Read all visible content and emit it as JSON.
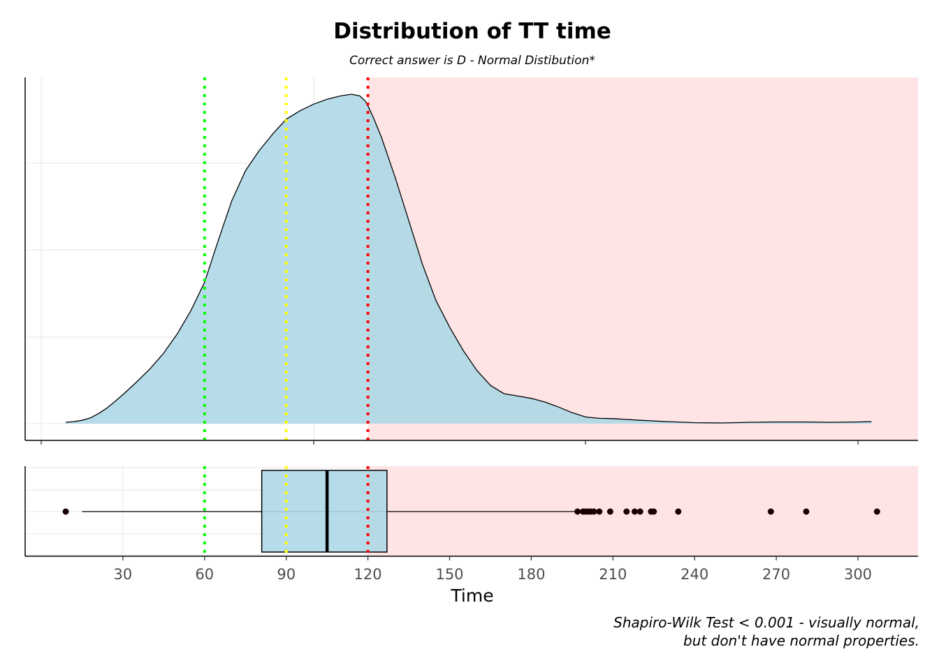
{
  "chart_data": {
    "title": "Distribution of TT time",
    "subtitle": "Correct answer is D - Normal Distibution*",
    "xlabel": "Time",
    "caption_lines": [
      "Shapiro-Wilk Test < 0.001 - visually normal,",
      "but don't have normal properties."
    ],
    "xlim": [
      0,
      307
    ],
    "x_ticks": [
      30,
      60,
      90,
      120,
      150,
      180,
      210,
      240,
      270,
      300
    ],
    "colors": {
      "fill": "#add8e6",
      "shade": "#ffe4e6",
      "green": "#00ff00",
      "yellow": "#ffff00",
      "red": "#ff0000"
    },
    "shaded_region": {
      "from": 120,
      "to": 307
    },
    "reference_lines": [
      {
        "x": 60,
        "color": "#00ff00"
      },
      {
        "x": 90,
        "color": "#ffff00"
      },
      {
        "x": 120,
        "color": "#ff0000"
      }
    ],
    "charts": [
      {
        "type": "area",
        "density_curve": {
          "x": [
            9,
            12,
            15,
            18,
            21,
            24,
            27,
            30,
            35,
            40,
            45,
            50,
            55,
            60,
            65,
            70,
            75,
            80,
            85,
            90,
            95,
            100,
            105,
            110,
            114,
            117,
            119,
            120,
            122,
            125,
            130,
            135,
            140,
            145,
            150,
            155,
            160,
            165,
            170,
            175,
            180,
            185,
            190,
            195,
            200,
            205,
            210,
            220,
            230,
            240,
            250,
            260,
            270,
            280,
            290,
            300,
            305
          ],
          "y": [
            0.4,
            0.6,
            1.0,
            1.7,
            3.0,
            4.6,
            6.6,
            8.7,
            12.5,
            16.5,
            21.2,
            27.0,
            34.0,
            42.5,
            55.0,
            67.0,
            76.0,
            82.0,
            87.0,
            91.5,
            94.0,
            96.0,
            97.5,
            98.5,
            99.0,
            98.5,
            97.0,
            95.5,
            92.0,
            86.0,
            74.0,
            61.0,
            48.0,
            37.0,
            29.0,
            22.0,
            16.0,
            11.5,
            9.0,
            8.3,
            7.6,
            6.5,
            5.0,
            3.3,
            2.0,
            1.6,
            1.5,
            1.0,
            0.6,
            0.3,
            0.2,
            0.4,
            0.5,
            0.5,
            0.4,
            0.5,
            0.6
          ]
        }
      },
      {
        "type": "box",
        "q1": 81,
        "median": 105,
        "q3": 127,
        "whisker_low": 15,
        "whisker_high": 197,
        "outliers": [
          9,
          197,
          199,
          200,
          201,
          202,
          203,
          205,
          209,
          215,
          218,
          220,
          224,
          225,
          234,
          268,
          281,
          307
        ]
      }
    ]
  }
}
